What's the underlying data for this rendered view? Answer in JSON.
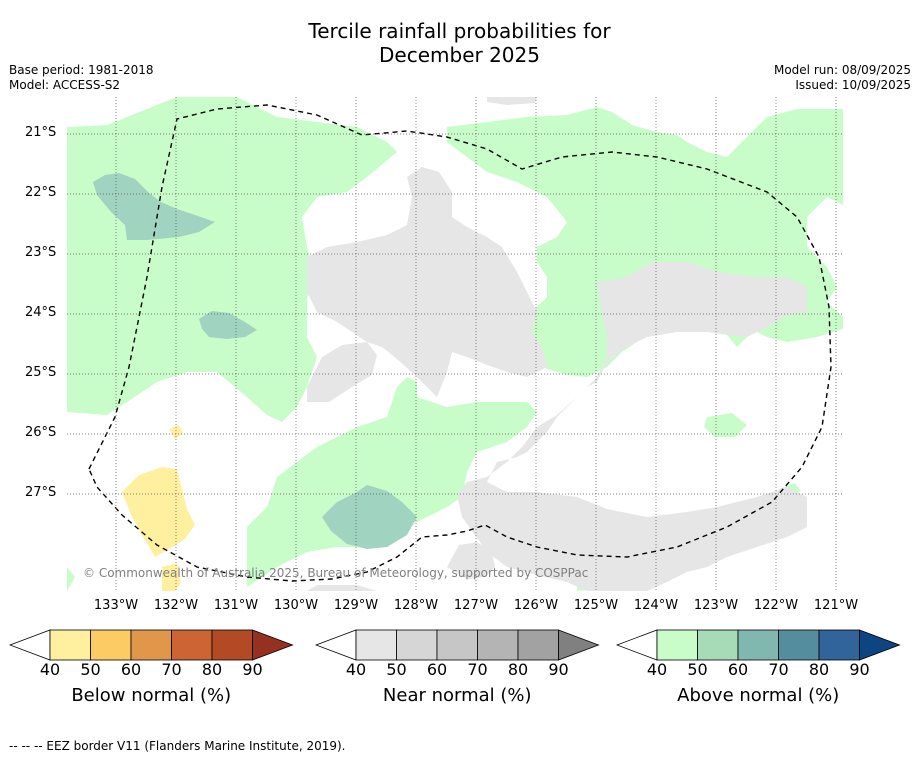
{
  "title_line1": "Tercile rainfall probabilities for",
  "title_line2": "December 2025",
  "base_period": "Base period: 1981-2018",
  "model": "Model: ACCESS-S2",
  "model_run": "Model run: 08/09/2025",
  "issued": "Issued: 10/09/2025",
  "copyright": "© Commonwealth of Australia 2025, Bureau of Meteorology, supported by COSPPac",
  "lon_labels": [
    "133°W",
    "132°W",
    "131°W",
    "130°W",
    "129°W",
    "128°W",
    "127°W",
    "126°W",
    "125°W",
    "124°W",
    "123°W",
    "122°W",
    "121°W"
  ],
  "lat_labels": [
    "21°S",
    "22°S",
    "23°S",
    "24°S",
    "25°S",
    "26°S",
    "27°S"
  ],
  "colorbars": [
    {
      "title": "Below normal (%)",
      "ticks": [
        "40",
        "50",
        "60",
        "70",
        "80",
        "90"
      ],
      "colors": [
        "#fff0a0",
        "#fdcb64",
        "#e0974a",
        "#cc6434",
        "#b24a26",
        "#963020"
      ]
    },
    {
      "title": "Near normal (%)",
      "ticks": [
        "40",
        "50",
        "60",
        "70",
        "80",
        "90"
      ],
      "colors": [
        "#e6e6e6",
        "#d6d6d6",
        "#c6c6c6",
        "#b4b4b4",
        "#a2a2a2",
        "#808080"
      ]
    },
    {
      "title": "Above normal (%)",
      "ticks": [
        "40",
        "50",
        "60",
        "70",
        "80",
        "90"
      ],
      "colors": [
        "#c8fcc8",
        "#a7dab7",
        "#80b8b0",
        "#548e9e",
        "#30649a",
        "#0c4582"
      ]
    }
  ],
  "footer": "--  --  -- EEZ border V11 (Flanders Marine Institute, 2019)."
}
